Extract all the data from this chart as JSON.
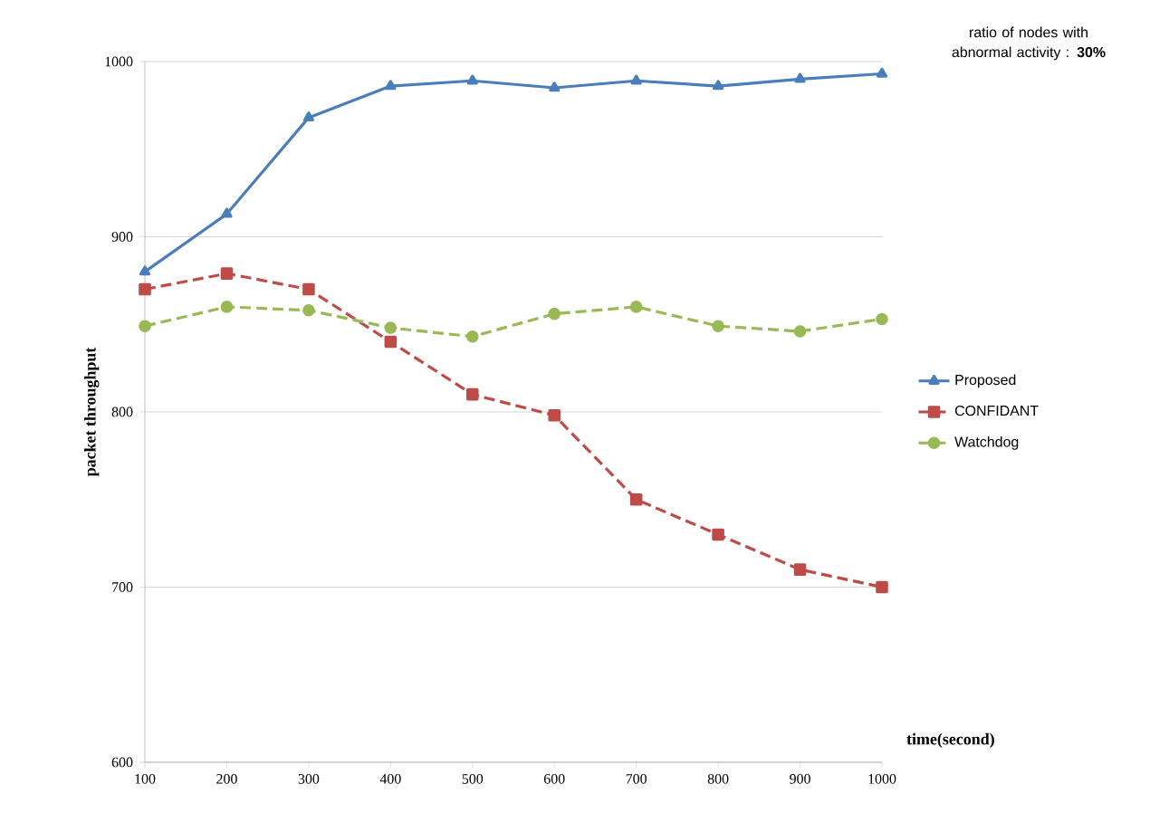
{
  "chart_data": {
    "type": "line",
    "x": [
      100,
      200,
      300,
      400,
      500,
      600,
      700,
      800,
      900,
      1000
    ],
    "series": [
      {
        "name": "Proposed",
        "color": "#4a7ebb",
        "marker": "triangle",
        "line_style": "solid",
        "values": [
          880,
          913,
          968,
          986,
          989,
          985,
          989,
          986,
          990,
          993
        ]
      },
      {
        "name": "CONFIDANT",
        "color": "#be4b48",
        "marker": "square",
        "line_style": "dashed",
        "values": [
          870,
          879,
          870,
          840,
          810,
          798,
          750,
          730,
          710,
          700
        ]
      },
      {
        "name": "Watchdog",
        "color": "#98b954",
        "marker": "circle",
        "line_style": "dashed",
        "values": [
          849,
          860,
          858,
          848,
          843,
          856,
          860,
          849,
          846,
          853
        ]
      }
    ],
    "xlabel": "time(second)",
    "ylabel": "packet  throughput",
    "xlim": [
      100,
      1000
    ],
    "ylim": [
      600,
      1000
    ],
    "xticks": [
      100,
      200,
      300,
      400,
      500,
      600,
      700,
      800,
      900,
      1000
    ],
    "yticks": [
      600,
      700,
      800,
      900,
      1000
    ],
    "grid": "y",
    "legend": "right",
    "annotations": [
      "ratio of nodes with abnormal activity : **30%**"
    ]
  }
}
